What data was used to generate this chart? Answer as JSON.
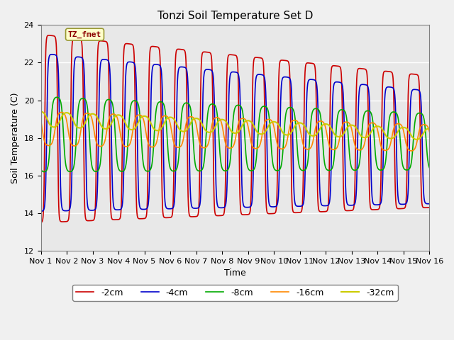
{
  "title": "Tonzi Soil Temperature Set D",
  "xlabel": "Time",
  "ylabel": "Soil Temperature (C)",
  "ylim": [
    12,
    24
  ],
  "yticks": [
    12,
    14,
    16,
    18,
    20,
    22,
    24
  ],
  "xlim": [
    0,
    15
  ],
  "xtick_labels": [
    "Nov 1",
    "Nov 2",
    "Nov 3",
    "Nov 4",
    "Nov 5",
    "Nov 6",
    "Nov 7",
    "Nov 8",
    "Nov 9",
    "Nov 10",
    "Nov 11",
    "Nov 12",
    "Nov 13",
    "Nov 14",
    "Nov 15",
    "Nov 16"
  ],
  "annotation_text": "TZ_fmet",
  "series": [
    {
      "label": "-2cm",
      "color": "#cc0000",
      "lw": 1.2
    },
    {
      "label": "-4cm",
      "color": "#0000cc",
      "lw": 1.2
    },
    {
      "label": "-8cm",
      "color": "#00aa00",
      "lw": 1.2
    },
    {
      "label": "-16cm",
      "color": "#ff8800",
      "lw": 1.2
    },
    {
      "label": "-32cm",
      "color": "#cccc00",
      "lw": 1.5
    }
  ],
  "bg_color": "#e8e8e8",
  "fig_bg_color": "#f0f0f0",
  "legend_ncol": 5
}
